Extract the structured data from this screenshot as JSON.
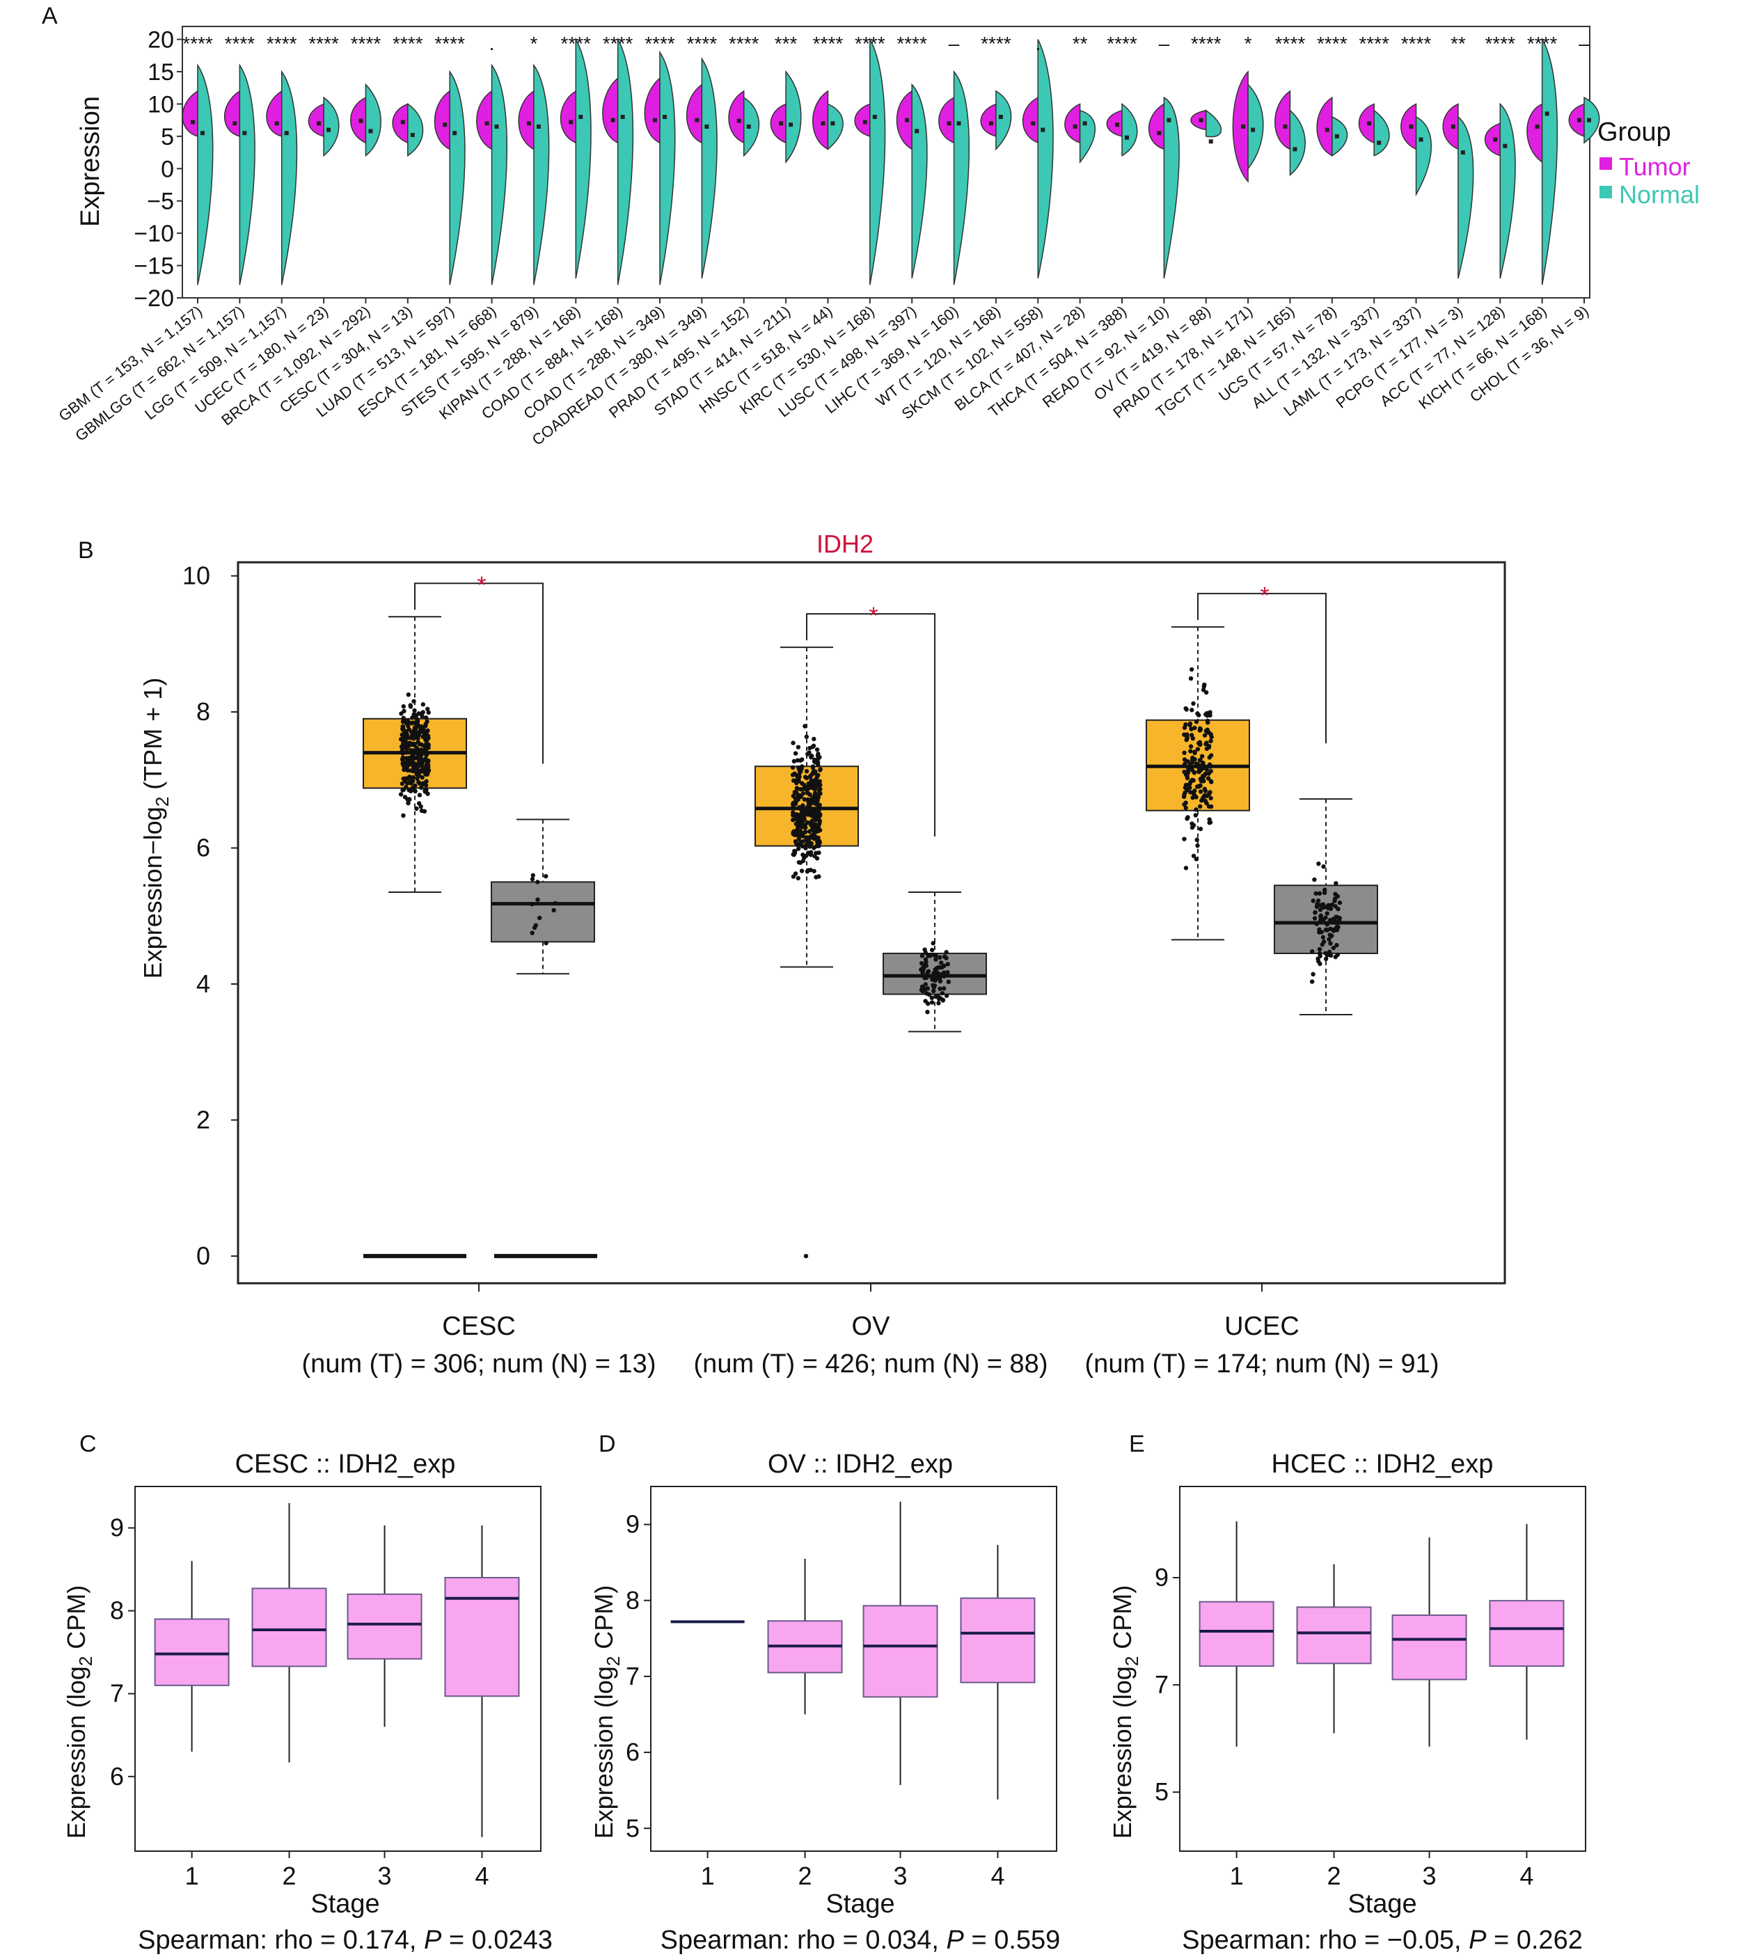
{
  "panel_labels": {
    "a": "A",
    "b": "B",
    "c": "C",
    "d": "D",
    "e": "E"
  },
  "panel_a": {
    "ylabel": "Expression",
    "legend_title": "Group",
    "legend": [
      {
        "name": "Tumor",
        "color": "#e020e0"
      },
      {
        "name": "Normal",
        "color": "#3cc8b4"
      }
    ]
  },
  "panel_b": {
    "title": "IDH2",
    "ylabel_main": "Expression−log",
    "ylabel_sub": "2",
    "ylabel_tail": " (TPM + 1)",
    "group_labels": [
      {
        "name": "CESC",
        "detail": "(num (T) = 306; num (N) = 13)"
      },
      {
        "name": "OV",
        "detail": "(num (T) = 426; num (N) = 88)"
      },
      {
        "name": "UCEC",
        "detail": "(num (T) = 174; num (N) = 91)"
      }
    ],
    "significance_mark": "*",
    "colors": {
      "tumor": "#f7b52c",
      "normal": "#8c8c8c",
      "sig": "#d0103a"
    }
  },
  "stage_panels": {
    "xlabel": "Stage",
    "ylabel_main": "Expression (log",
    "ylabel_sub": "2",
    "ylabel_tail": " CPM)",
    "box_color": "#f9a6f0",
    "titles": [
      "CESC :: IDH2_exp",
      "OV :: IDH2_exp",
      "HCEC :: IDH2_exp"
    ],
    "footnotes": [
      {
        "lead": "Spearman: rho = 0.174, ",
        "p_italic": "P",
        "tail": " = 0.0243"
      },
      {
        "lead": "Spearman: rho = 0.034, ",
        "p_italic": "P",
        "tail": " = 0.559"
      },
      {
        "lead": "Spearman: rho = −0.05, ",
        "p_italic": "P",
        "tail": " = 0.262"
      }
    ]
  },
  "chart_data": [
    {
      "type": "violin",
      "panel": "A",
      "ylabel": "Expression",
      "ylim": [
        -20,
        22
      ],
      "yticks": [
        -20,
        -15,
        -10,
        -5,
        0,
        5,
        10,
        15,
        20
      ],
      "legend_title": "Group",
      "series": [
        {
          "name": "Tumor",
          "color": "#e020e0"
        },
        {
          "name": "Normal",
          "color": "#3cc8b4"
        }
      ],
      "categories": [
        "GBM (T = 153, N = 1,157)",
        "GBMLGG (T = 662, N = 1,157)",
        "LGG (T = 509, N = 1,157)",
        "UCEC (T = 180, N = 23)",
        "BRCA (T = 1,092, N = 292)",
        "CESC (T = 304, N = 13)",
        "LUAD (T = 513, N = 597)",
        "ESCA (T = 181, N = 668)",
        "STES (T = 595, N = 879)",
        "KIPAN (T = 288, N = 168)",
        "COAD (T = 884, N = 168)",
        "COAD (T = 288, N = 349)",
        "COADREAD (T = 380, N = 349)",
        "PRAD (T = 495, N = 152)",
        "STAD (T = 414, N = 211)",
        "HNSC (T = 518, N = 44)",
        "KIRC (T = 530, N = 168)",
        "LUSC (T = 498, N = 397)",
        "LIHC (T = 369, N = 160)",
        "WT (T = 120, N = 168)",
        "SKCM (T = 102, N = 558)",
        "BLCA (T = 407, N = 28)",
        "THCA (T = 504, N = 388)",
        "READ (T = 92, N = 10)",
        "OV (T = 419, N = 88)",
        "PRAD (T = 178, N = 171)",
        "TGCT (T = 148, N = 165)",
        "UCS (T = 57, N = 78)",
        "ALL (T = 132, N = 337)",
        "LAML (T = 173, N = 337)",
        "PCPG (T = 177, N = 3)",
        "ACC (T = 77, N = 128)",
        "KICH (T = 66, N = 168)",
        "CHOL (T = 36, N = 9)"
      ],
      "significance": [
        "****",
        "****",
        "****",
        "****",
        "****",
        "****",
        "****",
        ".",
        "*",
        "****",
        "****",
        "****",
        "****",
        "****",
        "***",
        "****",
        "****",
        "****",
        "–",
        "****",
        ".",
        "**",
        "****",
        "–",
        "****",
        "*",
        "****",
        "****",
        "****",
        "****",
        "**",
        "****",
        "****",
        "–"
      ],
      "tumor_median": [
        7.2,
        7.0,
        7.0,
        7.0,
        7.4,
        7.2,
        6.8,
        7.0,
        7.0,
        7.2,
        7.5,
        7.5,
        7.5,
        7.4,
        7.0,
        7.0,
        7.2,
        7.5,
        7.0,
        7.0,
        7.0,
        6.5,
        6.8,
        5.5,
        7.5,
        6.5,
        6.5,
        6.0,
        7.0,
        6.5,
        6.5,
        4.5,
        6.5,
        7.5
      ],
      "tumor_range": [
        [
          5,
          12
        ],
        [
          5,
          12
        ],
        [
          5,
          12
        ],
        [
          5,
          10
        ],
        [
          4,
          11
        ],
        [
          4,
          10
        ],
        [
          3,
          12
        ],
        [
          3,
          12
        ],
        [
          3,
          12
        ],
        [
          4,
          12
        ],
        [
          4,
          14
        ],
        [
          4,
          14
        ],
        [
          4,
          13
        ],
        [
          4,
          12
        ],
        [
          4,
          10
        ],
        [
          3,
          12
        ],
        [
          5,
          10
        ],
        [
          3,
          12
        ],
        [
          4,
          11
        ],
        [
          5,
          10
        ],
        [
          4,
          11
        ],
        [
          4,
          10
        ],
        [
          5,
          9
        ],
        [
          3,
          10
        ],
        [
          6,
          9
        ],
        [
          -2,
          15
        ],
        [
          3,
          12
        ],
        [
          2,
          11
        ],
        [
          4,
          10
        ],
        [
          3,
          10
        ],
        [
          3,
          10
        ],
        [
          2,
          7
        ],
        [
          1,
          10
        ],
        [
          5,
          10
        ]
      ],
      "normal_median": [
        5.5,
        5.5,
        5.5,
        6.0,
        5.8,
        5.2,
        5.5,
        6.5,
        6.5,
        8.0,
        8.0,
        8.0,
        6.5,
        6.5,
        6.8,
        7.0,
        8.0,
        5.8,
        7.0,
        8.0,
        6.0,
        7.0,
        4.8,
        7.5,
        4.2,
        6.0,
        3.0,
        5.0,
        4.0,
        4.5,
        2.5,
        3.5,
        8.5,
        7.5
      ],
      "normal_range": [
        [
          -18,
          16
        ],
        [
          -18,
          16
        ],
        [
          -18,
          15
        ],
        [
          2,
          11
        ],
        [
          2,
          13
        ],
        [
          2,
          10
        ],
        [
          -18,
          15
        ],
        [
          -18,
          16
        ],
        [
          -18,
          16
        ],
        [
          -17,
          20
        ],
        [
          -18,
          20
        ],
        [
          -18,
          18
        ],
        [
          -17,
          17
        ],
        [
          2,
          11
        ],
        [
          1,
          15
        ],
        [
          3,
          10
        ],
        [
          -18,
          20
        ],
        [
          -17,
          13
        ],
        [
          -18,
          15
        ],
        [
          3,
          12
        ],
        [
          -17,
          20
        ],
        [
          1,
          9
        ],
        [
          2,
          10
        ],
        [
          -17,
          11
        ],
        [
          5,
          9
        ],
        [
          0,
          13
        ],
        [
          -1,
          9
        ],
        [
          2,
          8
        ],
        [
          2,
          9
        ],
        [
          -4,
          8
        ],
        [
          -17,
          8
        ],
        [
          -17,
          10
        ],
        [
          -18,
          20
        ],
        [
          4,
          11
        ]
      ]
    },
    {
      "type": "box",
      "panel": "B",
      "title": "IDH2",
      "ylabel": "Expression−log2 (TPM + 1)",
      "ylim": [
        -0.4,
        10.2
      ],
      "yticks": [
        0,
        2,
        4,
        6,
        8,
        10
      ],
      "categories": [
        "CESC",
        "OV",
        "UCEC"
      ],
      "category_details": [
        "(num (T) = 306; num (N) = 13)",
        "(num (T) = 426; num (N) = 88)",
        "(num (T) = 174; num (N) = 91)"
      ],
      "series": [
        {
          "name": "Tumor",
          "color": "#f7b52c",
          "n": [
            306,
            426,
            174
          ],
          "min": [
            5.35,
            4.25,
            4.65
          ],
          "q1": [
            6.88,
            6.03,
            6.55
          ],
          "median": [
            7.4,
            6.58,
            7.2
          ],
          "q3": [
            7.9,
            7.2,
            7.88
          ],
          "max": [
            9.4,
            8.95,
            9.25
          ]
        },
        {
          "name": "Normal",
          "color": "#8c8c8c",
          "n": [
            13,
            88,
            91
          ],
          "min": [
            4.15,
            3.3,
            3.55
          ],
          "q1": [
            4.62,
            3.85,
            4.45
          ],
          "median": [
            5.18,
            4.12,
            4.9
          ],
          "q3": [
            5.5,
            4.45,
            5.45
          ],
          "max": [
            6.42,
            5.35,
            6.72
          ]
        }
      ],
      "significance": [
        "*",
        "*",
        "*"
      ],
      "zero_lines": [
        "CESC Tumor",
        "CESC Normal"
      ]
    },
    {
      "type": "box",
      "panel": "C",
      "title": "CESC :: IDH2_exp",
      "xlabel": "Stage",
      "ylabel": "Expression (log2 CPM)",
      "categories": [
        "1",
        "2",
        "3",
        "4"
      ],
      "ylim": [
        5.1,
        9.5
      ],
      "yticks": [
        6,
        7,
        8,
        9
      ],
      "min": [
        6.3,
        6.17,
        6.6,
        5.27
      ],
      "q1": [
        7.1,
        7.33,
        7.42,
        6.97
      ],
      "median": [
        7.48,
        7.77,
        7.84,
        8.15
      ],
      "q3": [
        7.9,
        8.27,
        8.2,
        8.4
      ],
      "max": [
        8.6,
        9.3,
        9.03,
        9.03
      ],
      "spearman": "rho = 0.174, P = 0.0243"
    },
    {
      "type": "box",
      "panel": "D",
      "title": "OV :: IDH2_exp",
      "xlabel": "Stage",
      "ylabel": "Expression (log2 CPM)",
      "categories": [
        "1",
        "2",
        "3",
        "4"
      ],
      "ylim": [
        4.7,
        9.5
      ],
      "yticks": [
        5,
        6,
        7,
        8,
        9
      ],
      "min": [
        7.72,
        6.5,
        5.57,
        5.38
      ],
      "q1": [
        7.72,
        7.05,
        6.73,
        6.92
      ],
      "median": [
        7.72,
        7.4,
        7.4,
        7.57
      ],
      "q3": [
        7.72,
        7.73,
        7.93,
        8.03
      ],
      "max": [
        7.72,
        8.55,
        9.3,
        8.73
      ],
      "spearman": "rho = 0.034, P = 0.559"
    },
    {
      "type": "box",
      "panel": "E",
      "title": "HCEC :: IDH2_exp",
      "xlabel": "Stage",
      "ylabel": "Expression (log2 CPM)",
      "categories": [
        "1",
        "2",
        "3",
        "4"
      ],
      "ylim": [
        3.9,
        10.7
      ],
      "yticks": [
        5,
        7,
        9
      ],
      "min": [
        5.85,
        6.1,
        5.85,
        5.98
      ],
      "q1": [
        7.35,
        7.4,
        7.1,
        7.35
      ],
      "median": [
        8.0,
        7.97,
        7.85,
        8.05
      ],
      "q3": [
        8.55,
        8.45,
        8.3,
        8.57
      ],
      "max": [
        10.05,
        9.25,
        9.75,
        10.0
      ],
      "spearman": "rho = −0.05, P = 0.262"
    }
  ]
}
